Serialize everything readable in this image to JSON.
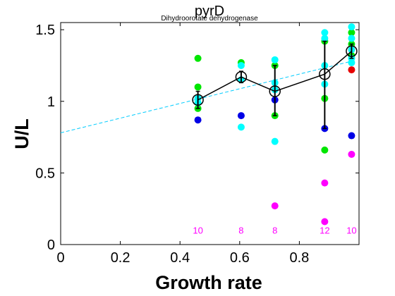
{
  "chart_data": {
    "type": "scatter",
    "title": "pyrD",
    "subtitle": "Dihydroorotate dehydrogenase",
    "xlabel": "Growth rate",
    "ylabel": "U/L",
    "xlim": [
      0,
      1.0
    ],
    "ylim": [
      0,
      1.55
    ],
    "xticks": [
      0,
      0.2,
      0.4,
      0.6,
      0.8
    ],
    "yticks": [
      0,
      0.5,
      1,
      1.5
    ],
    "xtick_labels": [
      "0",
      "0.2",
      "0.4",
      "0.6",
      "0.8"
    ],
    "ytick_labels": [
      "0",
      "0.5",
      "1",
      "1.5"
    ],
    "grid": false,
    "colors": {
      "green": "#00e600",
      "cyan": "#00ffff",
      "blue": "#0000e6",
      "magenta": "#ff00ff",
      "red": "#e60000",
      "fit_line": "#00ccff",
      "mean": "#000000"
    },
    "point_groups": [
      {
        "color": "green",
        "points": [
          [
            0.46,
            1.3
          ],
          [
            0.46,
            1.1
          ],
          [
            0.46,
            0.95
          ],
          [
            0.605,
            1.27
          ],
          [
            0.718,
            1.25
          ],
          [
            0.718,
            0.9
          ],
          [
            0.885,
            1.42
          ],
          [
            0.885,
            1.02
          ],
          [
            0.885,
            0.66
          ],
          [
            0.975,
            1.48
          ],
          [
            0.975,
            1.4
          ],
          [
            0.975,
            1.32
          ]
        ]
      },
      {
        "color": "cyan",
        "points": [
          [
            0.46,
            1.02
          ],
          [
            0.46,
            0.99
          ],
          [
            0.605,
            1.25
          ],
          [
            0.605,
            1.15
          ],
          [
            0.605,
            0.82
          ],
          [
            0.718,
            1.29
          ],
          [
            0.718,
            1.13
          ],
          [
            0.718,
            1.08
          ],
          [
            0.718,
            0.72
          ],
          [
            0.885,
            1.48
          ],
          [
            0.885,
            1.44
          ],
          [
            0.885,
            1.25
          ],
          [
            0.885,
            1.12
          ],
          [
            0.975,
            1.52
          ],
          [
            0.975,
            1.44
          ],
          [
            0.975,
            1.36
          ],
          [
            0.975,
            1.3
          ],
          [
            0.975,
            1.27
          ]
        ]
      },
      {
        "color": "blue",
        "points": [
          [
            0.46,
            0.87
          ],
          [
            0.605,
            0.9
          ],
          [
            0.718,
            1.01
          ],
          [
            0.885,
            0.81
          ],
          [
            0.975,
            0.76
          ]
        ]
      },
      {
        "color": "magenta",
        "points": [
          [
            0.718,
            0.27
          ],
          [
            0.885,
            0.43
          ],
          [
            0.885,
            0.16
          ],
          [
            0.975,
            0.63
          ]
        ]
      },
      {
        "color": "red",
        "points": [
          [
            0.975,
            1.22
          ]
        ]
      }
    ],
    "mean_series": {
      "x": [
        0.46,
        0.605,
        0.718,
        0.885,
        0.975
      ],
      "y": [
        1.01,
        1.17,
        1.07,
        1.19,
        1.35
      ],
      "err_low": [
        0.95,
        1.13,
        0.9,
        0.81,
        1.3
      ],
      "err_high": [
        1.07,
        1.21,
        1.25,
        1.42,
        1.4
      ]
    },
    "fit_line": {
      "x": [
        0,
        0.975
      ],
      "y": [
        0.78,
        1.28
      ],
      "style": "dashed"
    },
    "counts": [
      {
        "x": 0.46,
        "label": "10"
      },
      {
        "x": 0.605,
        "label": "8"
      },
      {
        "x": 0.718,
        "label": "8"
      },
      {
        "x": 0.885,
        "label": "12"
      },
      {
        "x": 0.975,
        "label": "10"
      }
    ],
    "counts_y": 0.1
  }
}
